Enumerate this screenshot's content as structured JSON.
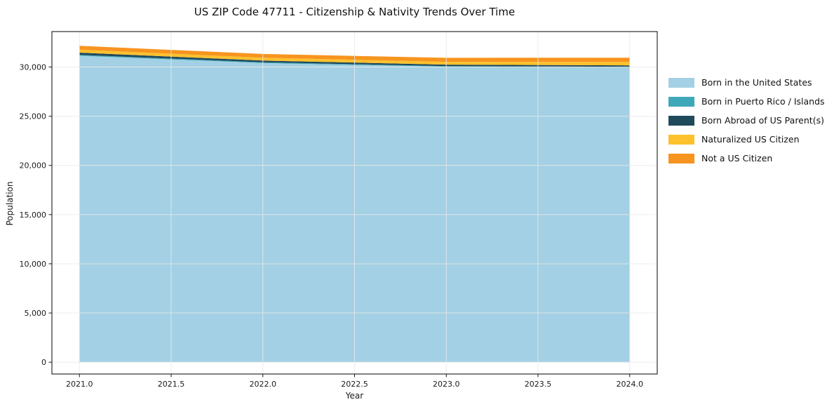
{
  "chart_data": {
    "type": "area",
    "stacked": true,
    "title": "US ZIP Code 47711 - Citizenship & Nativity Trends Over Time",
    "xlabel": "Year",
    "ylabel": "Population",
    "x": [
      2021,
      2022,
      2023,
      2024
    ],
    "series": [
      {
        "name": "Born in the United States",
        "color": "#a3d0e4",
        "values": [
          31150,
          30400,
          30030,
          29950
        ]
      },
      {
        "name": "Born in Puerto Rico / Islands",
        "color": "#3fa7ba",
        "values": [
          80,
          75,
          60,
          70
        ]
      },
      {
        "name": "Born Abroad of US Parent(s)",
        "color": "#20495c",
        "values": [
          230,
          180,
          150,
          140
        ]
      },
      {
        "name": "Naturalized US Citizen",
        "color": "#fdc12d",
        "values": [
          300,
          290,
          290,
          360
        ]
      },
      {
        "name": "Not a US Citizen",
        "color": "#f7941f",
        "values": [
          390,
          380,
          400,
          430
        ]
      }
    ],
    "x_ticks": [
      2021.0,
      2021.5,
      2022.0,
      2022.5,
      2023.0,
      2023.5,
      2024.0
    ],
    "y_ticks": [
      0,
      5000,
      10000,
      15000,
      20000,
      25000,
      30000
    ],
    "xlim": [
      2020.85,
      2024.15
    ],
    "ylim": [
      -1200,
      33600
    ],
    "grid": true,
    "legend_position": "right-outside",
    "colors": {
      "background": "#ffffff",
      "grid": "#e9e9e9",
      "spine": "#1a1a1a",
      "text": "#1a1a1a"
    }
  }
}
